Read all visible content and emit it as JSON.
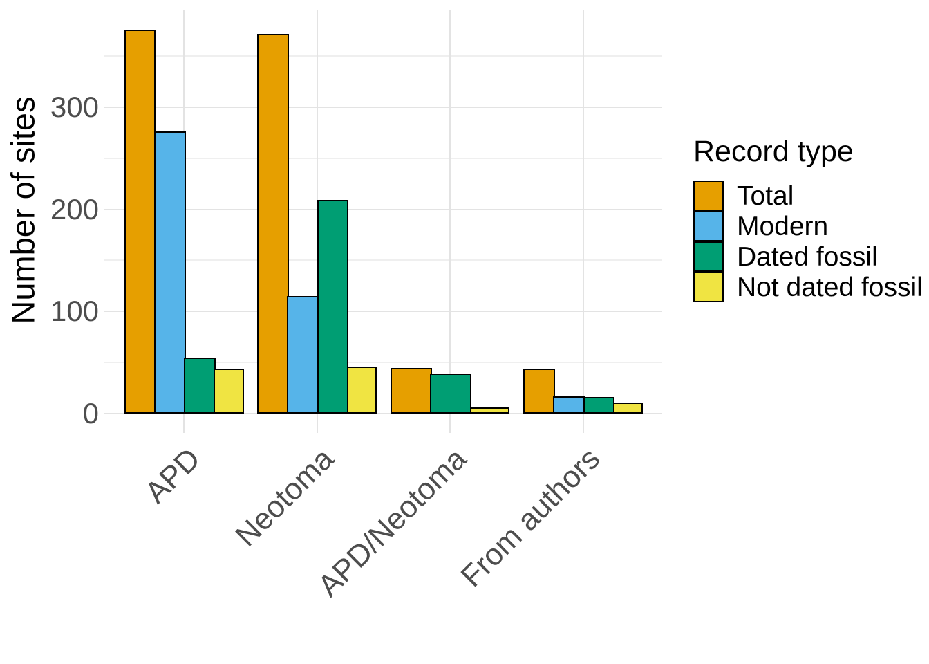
{
  "chart_data": {
    "type": "bar",
    "title": "",
    "xlabel": "",
    "ylabel": "Number of sites",
    "categories": [
      "APD",
      "Neotoma",
      "APD/Neotoma",
      "From authors"
    ],
    "series": [
      {
        "name": "Total",
        "color": "#E69F00",
        "values": [
          376,
          372,
          45,
          44
        ]
      },
      {
        "name": "Modern",
        "color": "#56B4E9",
        "values": [
          276,
          115,
          null,
          17
        ]
      },
      {
        "name": "Dated fossil",
        "color": "#009E73",
        "values": [
          55,
          209,
          39,
          16
        ]
      },
      {
        "name": "Not dated fossil",
        "color": "#F0E442",
        "values": [
          44,
          46,
          6,
          11
        ]
      }
    ],
    "ylim": [
      0,
      395
    ],
    "y_major_ticks": [
      0,
      100,
      200,
      300
    ],
    "y_minor_ticks": [
      50,
      150,
      250,
      350
    ],
    "grid": true,
    "legend_title": "Record type",
    "legend_position": "right",
    "bar_border_color": "#000000",
    "panel_background": "#FFFFFF",
    "gridline_color_major": "#E3E3E3",
    "gridline_color_minor": "#EFEFEF",
    "tick_label_color": "#4D4D4D",
    "axis_title_color": "#000000",
    "x_label_angle_deg": 45
  }
}
